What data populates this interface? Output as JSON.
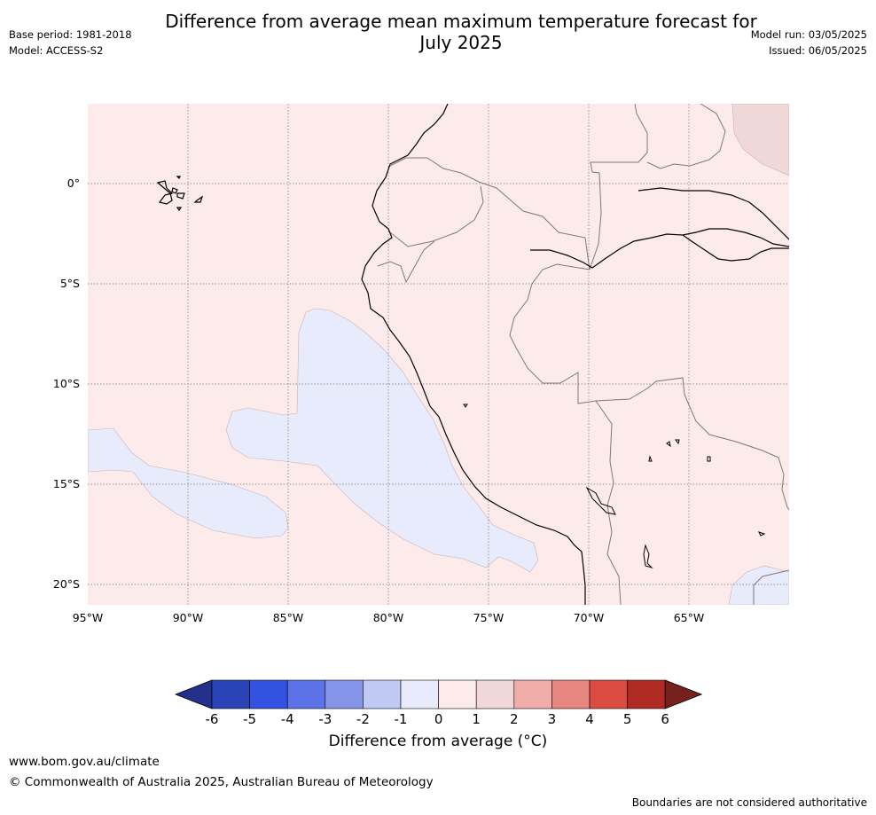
{
  "title": {
    "line1": "Difference from average mean maximum temperature forecast for",
    "line2": "July 2025"
  },
  "meta_left": {
    "base_period": "Base period: 1981-2018",
    "model": "Model: ACCESS-S2"
  },
  "meta_right": {
    "model_run": "Model run: 03/05/2025",
    "issued": "Issued: 06/05/2025"
  },
  "map": {
    "latitude_labels": [
      "0°",
      "5°S",
      "10°S",
      "15°S",
      "20°S"
    ],
    "latitude_values": [
      0,
      -5,
      -10,
      -15,
      -20
    ],
    "longitude_labels": [
      "95°W",
      "90°W",
      "85°W",
      "80°W",
      "75°W",
      "70°W",
      "65°W"
    ],
    "longitude_values": [
      -95,
      -90,
      -85,
      -80,
      -75,
      -70,
      -65
    ],
    "lon_range": [
      -95,
      -60
    ],
    "lat_range": [
      -21,
      4
    ]
  },
  "colorbar": {
    "ticks": [
      "-6",
      "-5",
      "-4",
      "-3",
      "-2",
      "-1",
      "0",
      "1",
      "2",
      "3",
      "4",
      "5",
      "6"
    ],
    "colors": [
      "#23318c",
      "#2a43b5",
      "#3352e2",
      "#5b73e6",
      "#8595ea",
      "#c0c8f4",
      "#e8ebfb",
      "#fcebea",
      "#f0d7d8",
      "#efaca8",
      "#e88780",
      "#db4b40",
      "#ae2a22",
      "#75201c"
    ],
    "label": "Difference from average (°C)"
  },
  "footer": {
    "website": "www.bom.gov.au/climate",
    "copyright": "© Commonwealth of Australia 2025, Australian Bureau of Meteorology",
    "note": "Boundaries are not considered authoritative"
  }
}
